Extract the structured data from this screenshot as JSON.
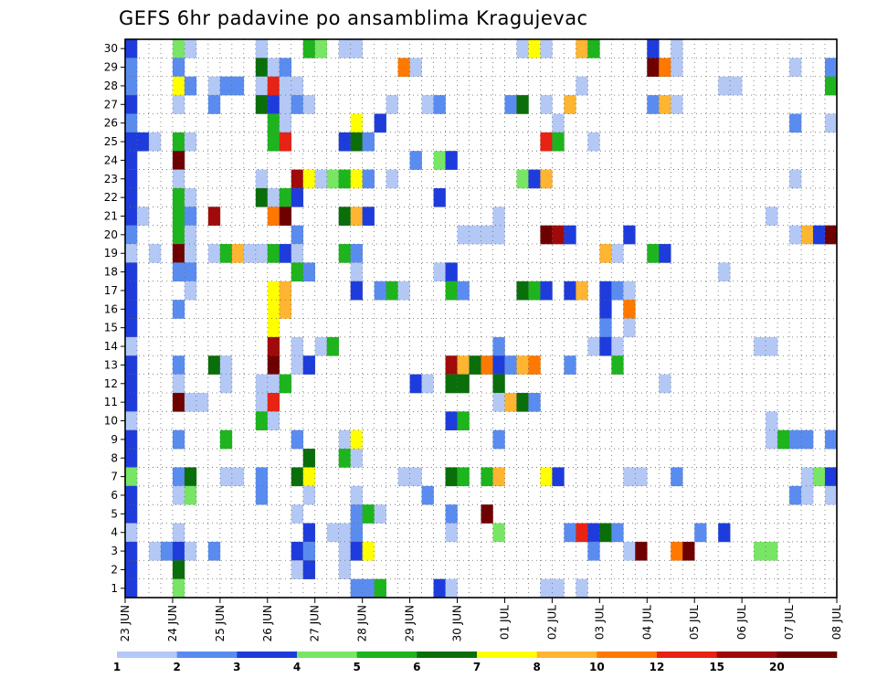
{
  "chart_data": {
    "type": "heatmap",
    "title": "GEFS 6hr padavine po ansamblima Kragujevac",
    "xlabel": "",
    "ylabel": "",
    "x_tick_labels": [
      "23 JUN",
      "24 JUN",
      "25 JUN",
      "26 JUN",
      "27 JUN",
      "28 JUN",
      "29 JUN",
      "30 JUN",
      "01 JUL",
      "02 JUL",
      "03 JUL",
      "04 JUL",
      "05 JUL",
      "06 JUL",
      "07 JUL",
      "08 JUL"
    ],
    "y_tick_labels": [
      "1",
      "2",
      "3",
      "4",
      "5",
      "6",
      "7",
      "8",
      "9",
      "10",
      "11",
      "12",
      "13",
      "14",
      "15",
      "16",
      "17",
      "18",
      "19",
      "20",
      "21",
      "22",
      "23",
      "24",
      "25",
      "26",
      "27",
      "28",
      "29",
      "30"
    ],
    "xlim": [
      0,
      60
    ],
    "ylim": [
      0.5,
      30.5
    ],
    "x_step": "6hr",
    "grid": true,
    "legend": {
      "placement": "bottom",
      "thresholds": [
        "1",
        "2",
        "3",
        "4",
        "5",
        "6",
        "7",
        "8",
        "10",
        "12",
        "15",
        "20"
      ],
      "colors": [
        "#b4c8f5",
        "#5a8cf0",
        "#1e3cdc",
        "#78e664",
        "#1eb41e",
        "#0a6e0a",
        "#ffff00",
        "#ffb432",
        "#ff7800",
        "#e62314",
        "#a00a0a",
        "#6e0000"
      ]
    },
    "cells_note": "each cell: [member, step, category]; category index 0-11 into legend colors",
    "cells": [
      [
        30,
        0,
        2
      ],
      [
        30,
        4,
        3
      ],
      [
        30,
        5,
        0
      ],
      [
        30,
        11,
        0
      ],
      [
        30,
        15,
        4
      ],
      [
        30,
        16,
        3
      ],
      [
        30,
        18,
        0
      ],
      [
        30,
        19,
        0
      ],
      [
        30,
        33,
        0
      ],
      [
        30,
        34,
        6
      ],
      [
        30,
        35,
        0
      ],
      [
        30,
        38,
        7
      ],
      [
        30,
        39,
        4
      ],
      [
        30,
        44,
        2
      ],
      [
        30,
        46,
        0
      ],
      [
        29,
        0,
        1
      ],
      [
        29,
        4,
        1
      ],
      [
        29,
        11,
        5
      ],
      [
        29,
        12,
        0
      ],
      [
        29,
        13,
        1
      ],
      [
        29,
        23,
        8
      ],
      [
        29,
        24,
        0
      ],
      [
        29,
        44,
        11
      ],
      [
        29,
        45,
        8
      ],
      [
        29,
        46,
        0
      ],
      [
        29,
        56,
        0
      ],
      [
        29,
        59,
        1
      ],
      [
        28,
        0,
        1
      ],
      [
        28,
        4,
        6
      ],
      [
        28,
        5,
        1
      ],
      [
        28,
        7,
        0
      ],
      [
        28,
        8,
        1
      ],
      [
        28,
        9,
        1
      ],
      [
        28,
        11,
        0
      ],
      [
        28,
        12,
        9
      ],
      [
        28,
        13,
        0
      ],
      [
        28,
        14,
        0
      ],
      [
        28,
        38,
        0
      ],
      [
        28,
        50,
        0
      ],
      [
        28,
        51,
        0
      ],
      [
        28,
        59,
        4
      ],
      [
        27,
        0,
        2
      ],
      [
        27,
        4,
        0
      ],
      [
        27,
        7,
        1
      ],
      [
        27,
        11,
        5
      ],
      [
        27,
        12,
        2
      ],
      [
        27,
        13,
        0
      ],
      [
        27,
        14,
        1
      ],
      [
        27,
        15,
        0
      ],
      [
        27,
        22,
        0
      ],
      [
        27,
        25,
        0
      ],
      [
        27,
        26,
        1
      ],
      [
        27,
        32,
        1
      ],
      [
        27,
        33,
        5
      ],
      [
        27,
        35,
        0
      ],
      [
        27,
        37,
        7
      ],
      [
        27,
        44,
        1
      ],
      [
        27,
        45,
        7
      ],
      [
        27,
        46,
        0
      ],
      [
        26,
        0,
        1
      ],
      [
        26,
        12,
        4
      ],
      [
        26,
        13,
        0
      ],
      [
        26,
        19,
        6
      ],
      [
        26,
        21,
        2
      ],
      [
        26,
        36,
        0
      ],
      [
        26,
        56,
        1
      ],
      [
        26,
        59,
        0
      ],
      [
        25,
        0,
        2
      ],
      [
        25,
        1,
        2
      ],
      [
        25,
        2,
        0
      ],
      [
        25,
        4,
        4
      ],
      [
        25,
        5,
        0
      ],
      [
        25,
        12,
        4
      ],
      [
        25,
        13,
        9
      ],
      [
        25,
        18,
        2
      ],
      [
        25,
        19,
        5
      ],
      [
        25,
        20,
        1
      ],
      [
        25,
        35,
        9
      ],
      [
        25,
        36,
        4
      ],
      [
        25,
        39,
        0
      ],
      [
        24,
        0,
        2
      ],
      [
        24,
        4,
        11
      ],
      [
        24,
        24,
        1
      ],
      [
        24,
        26,
        3
      ],
      [
        24,
        27,
        2
      ],
      [
        23,
        0,
        2
      ],
      [
        23,
        4,
        0
      ],
      [
        23,
        11,
        0
      ],
      [
        23,
        14,
        10
      ],
      [
        23,
        15,
        6
      ],
      [
        23,
        16,
        0
      ],
      [
        23,
        17,
        3
      ],
      [
        23,
        18,
        4
      ],
      [
        23,
        19,
        6
      ],
      [
        23,
        20,
        1
      ],
      [
        23,
        22,
        0
      ],
      [
        23,
        33,
        3
      ],
      [
        23,
        34,
        2
      ],
      [
        23,
        35,
        7
      ],
      [
        23,
        56,
        0
      ],
      [
        22,
        0,
        2
      ],
      [
        22,
        4,
        4
      ],
      [
        22,
        5,
        0
      ],
      [
        22,
        11,
        5
      ],
      [
        22,
        12,
        0
      ],
      [
        22,
        13,
        4
      ],
      [
        22,
        14,
        2
      ],
      [
        22,
        26,
        2
      ],
      [
        21,
        0,
        2
      ],
      [
        21,
        1,
        0
      ],
      [
        21,
        4,
        4
      ],
      [
        21,
        5,
        1
      ],
      [
        21,
        7,
        10
      ],
      [
        21,
        12,
        8
      ],
      [
        21,
        13,
        11
      ],
      [
        21,
        18,
        5
      ],
      [
        21,
        19,
        7
      ],
      [
        21,
        20,
        2
      ],
      [
        21,
        31,
        0
      ],
      [
        21,
        54,
        0
      ],
      [
        20,
        0,
        1
      ],
      [
        20,
        4,
        4
      ],
      [
        20,
        5,
        0
      ],
      [
        20,
        14,
        1
      ],
      [
        20,
        28,
        0
      ],
      [
        20,
        29,
        0
      ],
      [
        20,
        30,
        0
      ],
      [
        20,
        31,
        0
      ],
      [
        20,
        35,
        11
      ],
      [
        20,
        36,
        10
      ],
      [
        20,
        37,
        2
      ],
      [
        20,
        42,
        2
      ],
      [
        20,
        56,
        0
      ],
      [
        20,
        57,
        7
      ],
      [
        20,
        58,
        2
      ],
      [
        20,
        59,
        11
      ],
      [
        19,
        0,
        0
      ],
      [
        19,
        2,
        0
      ],
      [
        19,
        4,
        11
      ],
      [
        19,
        5,
        0
      ],
      [
        19,
        7,
        0
      ],
      [
        19,
        8,
        4
      ],
      [
        19,
        9,
        7
      ],
      [
        19,
        10,
        0
      ],
      [
        19,
        11,
        0
      ],
      [
        19,
        12,
        4
      ],
      [
        19,
        13,
        2
      ],
      [
        19,
        14,
        0
      ],
      [
        19,
        18,
        4
      ],
      [
        19,
        19,
        1
      ],
      [
        19,
        40,
        7
      ],
      [
        19,
        41,
        0
      ],
      [
        19,
        44,
        4
      ],
      [
        19,
        45,
        2
      ],
      [
        18,
        0,
        2
      ],
      [
        18,
        4,
        1
      ],
      [
        18,
        5,
        1
      ],
      [
        18,
        14,
        4
      ],
      [
        18,
        15,
        1
      ],
      [
        18,
        19,
        0
      ],
      [
        18,
        26,
        0
      ],
      [
        18,
        27,
        2
      ],
      [
        18,
        50,
        0
      ],
      [
        17,
        0,
        2
      ],
      [
        17,
        5,
        0
      ],
      [
        17,
        12,
        6
      ],
      [
        17,
        13,
        7
      ],
      [
        17,
        19,
        2
      ],
      [
        17,
        21,
        1
      ],
      [
        17,
        22,
        4
      ],
      [
        17,
        23,
        0
      ],
      [
        17,
        27,
        4
      ],
      [
        17,
        28,
        1
      ],
      [
        17,
        33,
        5
      ],
      [
        17,
        34,
        4
      ],
      [
        17,
        35,
        2
      ],
      [
        17,
        37,
        2
      ],
      [
        17,
        38,
        7
      ],
      [
        17,
        40,
        2
      ],
      [
        17,
        41,
        1
      ],
      [
        17,
        42,
        0
      ],
      [
        16,
        0,
        2
      ],
      [
        16,
        4,
        1
      ],
      [
        16,
        12,
        6
      ],
      [
        16,
        13,
        7
      ],
      [
        16,
        40,
        2
      ],
      [
        16,
        42,
        8
      ],
      [
        15,
        0,
        2
      ],
      [
        15,
        12,
        6
      ],
      [
        15,
        40,
        1
      ],
      [
        15,
        42,
        0
      ],
      [
        14,
        0,
        0
      ],
      [
        14,
        12,
        10
      ],
      [
        14,
        14,
        0
      ],
      [
        14,
        16,
        0
      ],
      [
        14,
        17,
        4
      ],
      [
        14,
        31,
        1
      ],
      [
        14,
        39,
        0
      ],
      [
        14,
        40,
        2
      ],
      [
        14,
        41,
        0
      ],
      [
        14,
        53,
        0
      ],
      [
        14,
        54,
        0
      ],
      [
        13,
        0,
        2
      ],
      [
        13,
        4,
        1
      ],
      [
        13,
        7,
        5
      ],
      [
        13,
        8,
        0
      ],
      [
        13,
        12,
        11
      ],
      [
        13,
        14,
        0
      ],
      [
        13,
        15,
        2
      ],
      [
        13,
        27,
        10
      ],
      [
        13,
        28,
        7
      ],
      [
        13,
        29,
        5
      ],
      [
        13,
        30,
        8
      ],
      [
        13,
        31,
        2
      ],
      [
        13,
        32,
        1
      ],
      [
        13,
        33,
        7
      ],
      [
        13,
        34,
        8
      ],
      [
        13,
        37,
        1
      ],
      [
        13,
        41,
        4
      ],
      [
        12,
        0,
        2
      ],
      [
        12,
        4,
        0
      ],
      [
        12,
        8,
        0
      ],
      [
        12,
        11,
        0
      ],
      [
        12,
        12,
        0
      ],
      [
        12,
        13,
        4
      ],
      [
        12,
        24,
        2
      ],
      [
        12,
        25,
        0
      ],
      [
        12,
        27,
        5
      ],
      [
        12,
        28,
        5
      ],
      [
        12,
        31,
        5
      ],
      [
        12,
        45,
        0
      ],
      [
        11,
        0,
        2
      ],
      [
        11,
        4,
        11
      ],
      [
        11,
        5,
        0
      ],
      [
        11,
        6,
        0
      ],
      [
        11,
        11,
        0
      ],
      [
        11,
        12,
        9
      ],
      [
        11,
        31,
        0
      ],
      [
        11,
        32,
        7
      ],
      [
        11,
        33,
        5
      ],
      [
        11,
        34,
        1
      ],
      [
        10,
        0,
        0
      ],
      [
        10,
        11,
        4
      ],
      [
        10,
        12,
        0
      ],
      [
        10,
        27,
        2
      ],
      [
        10,
        28,
        4
      ],
      [
        10,
        54,
        0
      ],
      [
        9,
        0,
        2
      ],
      [
        9,
        4,
        1
      ],
      [
        9,
        8,
        4
      ],
      [
        9,
        14,
        1
      ],
      [
        9,
        18,
        0
      ],
      [
        9,
        19,
        6
      ],
      [
        9,
        31,
        1
      ],
      [
        9,
        54,
        0
      ],
      [
        9,
        55,
        4
      ],
      [
        9,
        56,
        1
      ],
      [
        9,
        57,
        1
      ],
      [
        9,
        59,
        1
      ],
      [
        8,
        0,
        2
      ],
      [
        8,
        15,
        5
      ],
      [
        8,
        18,
        4
      ],
      [
        8,
        19,
        0
      ],
      [
        7,
        0,
        3
      ],
      [
        7,
        4,
        1
      ],
      [
        7,
        5,
        5
      ],
      [
        7,
        8,
        0
      ],
      [
        7,
        9,
        0
      ],
      [
        7,
        11,
        1
      ],
      [
        7,
        14,
        5
      ],
      [
        7,
        15,
        6
      ],
      [
        7,
        23,
        0
      ],
      [
        7,
        24,
        0
      ],
      [
        7,
        27,
        5
      ],
      [
        7,
        28,
        4
      ],
      [
        7,
        30,
        4
      ],
      [
        7,
        31,
        7
      ],
      [
        7,
        35,
        6
      ],
      [
        7,
        36,
        2
      ],
      [
        7,
        42,
        0
      ],
      [
        7,
        43,
        0
      ],
      [
        7,
        46,
        1
      ],
      [
        7,
        57,
        0
      ],
      [
        7,
        58,
        3
      ],
      [
        7,
        59,
        2
      ],
      [
        6,
        0,
        2
      ],
      [
        6,
        4,
        0
      ],
      [
        6,
        5,
        3
      ],
      [
        6,
        11,
        1
      ],
      [
        6,
        15,
        0
      ],
      [
        6,
        19,
        0
      ],
      [
        6,
        25,
        1
      ],
      [
        6,
        56,
        1
      ],
      [
        6,
        57,
        0
      ],
      [
        6,
        59,
        0
      ],
      [
        5,
        0,
        2
      ],
      [
        5,
        14,
        0
      ],
      [
        5,
        19,
        1
      ],
      [
        5,
        20,
        4
      ],
      [
        5,
        21,
        0
      ],
      [
        5,
        27,
        1
      ],
      [
        5,
        30,
        11
      ],
      [
        4,
        0,
        0
      ],
      [
        4,
        4,
        0
      ],
      [
        4,
        15,
        2
      ],
      [
        4,
        17,
        0
      ],
      [
        4,
        18,
        0
      ],
      [
        4,
        19,
        1
      ],
      [
        4,
        27,
        0
      ],
      [
        4,
        31,
        3
      ],
      [
        4,
        37,
        1
      ],
      [
        4,
        38,
        9
      ],
      [
        4,
        39,
        2
      ],
      [
        4,
        40,
        5
      ],
      [
        4,
        41,
        1
      ],
      [
        4,
        48,
        1
      ],
      [
        4,
        50,
        2
      ],
      [
        3,
        0,
        2
      ],
      [
        3,
        2,
        0
      ],
      [
        3,
        3,
        1
      ],
      [
        3,
        4,
        2
      ],
      [
        3,
        5,
        0
      ],
      [
        3,
        7,
        1
      ],
      [
        3,
        14,
        2
      ],
      [
        3,
        15,
        1
      ],
      [
        3,
        18,
        0
      ],
      [
        3,
        19,
        2
      ],
      [
        3,
        20,
        6
      ],
      [
        3,
        39,
        1
      ],
      [
        3,
        42,
        0
      ],
      [
        3,
        43,
        11
      ],
      [
        3,
        46,
        8
      ],
      [
        3,
        47,
        11
      ],
      [
        3,
        53,
        3
      ],
      [
        3,
        54,
        3
      ],
      [
        2,
        0,
        2
      ],
      [
        2,
        4,
        5
      ],
      [
        2,
        14,
        0
      ],
      [
        2,
        15,
        2
      ],
      [
        2,
        18,
        0
      ],
      [
        1,
        0,
        2
      ],
      [
        1,
        4,
        3
      ],
      [
        1,
        19,
        1
      ],
      [
        1,
        20,
        1
      ],
      [
        1,
        21,
        4
      ],
      [
        1,
        26,
        2
      ],
      [
        1,
        27,
        0
      ],
      [
        1,
        35,
        0
      ],
      [
        1,
        36,
        0
      ],
      [
        1,
        38,
        0
      ]
    ]
  }
}
